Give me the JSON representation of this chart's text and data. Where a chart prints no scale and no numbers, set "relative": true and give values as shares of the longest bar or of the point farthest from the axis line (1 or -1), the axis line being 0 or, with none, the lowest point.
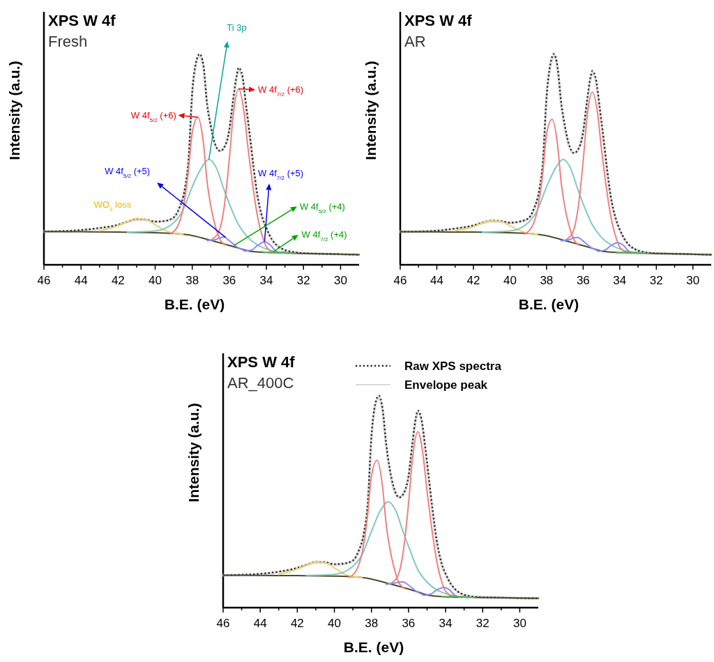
{
  "chart_data": [
    {
      "type": "line",
      "title": "XPS W 4f",
      "subtitle": "Fresh",
      "xlabel": "B.E. (eV)",
      "ylabel": "Intensity (a.u.)",
      "relative": true,
      "xlim": [
        46,
        29
      ],
      "xticks": [
        46,
        {
          "value": 45,
          "label": null
        },
        44,
        {
          "value": 43,
          "label": null
        },
        42,
        {
          "value": 41,
          "label": null
        },
        40,
        {
          "value": 39,
          "label": null
        },
        38,
        {
          "value": 37,
          "label": null
        },
        36,
        {
          "value": 35,
          "label": null
        },
        34,
        {
          "value": 33,
          "label": null
        },
        32,
        {
          "value": 31,
          "label": null
        },
        30
      ],
      "annotations": [
        {
          "text": "WO$_{3}$ loss",
          "x": 41,
          "y": 0.22
        },
        "Ti 3p",
        {
          "text": "W 4f$_{5/2}$ (+6)",
          "x": 37.7,
          "y": 0.7
        },
        {
          "text": "W 4f$_{7/2}$ (+6)",
          "x": 35.5,
          "y": 0.835
        },
        "W 4f$_{5/2}$ (+5)",
        {
          "text": "W 4f$_{7/2}$ (+5)",
          "x": 34.1,
          "y": 0.11
        },
        {
          "text": "W 4f$_{5/2}$ (+4)",
          "x": 35.74,
          "y": 0.092
        },
        {
          "text": "W 4f$_{7/2}$ (+4)",
          "x": 33.6,
          "y": 0.063
        }
      ],
      "series": [
        {
          "color": "#d9d9d9",
          "x": [
            46,
            45,
            44,
            43,
            42,
            41.5,
            41,
            40.5,
            40,
            39.5,
            39,
            38.7,
            38.4,
            38.2,
            38,
            37.8,
            37.6,
            37.4,
            37.2,
            37,
            36.8,
            36.5,
            36.2,
            36,
            35.8,
            35.6,
            35.5,
            35.3,
            35.1,
            34.9,
            34.7,
            34.5,
            34.2,
            34,
            33.7,
            33.4,
            33,
            32.5,
            32,
            31,
            30,
            29
          ],
          "values": [
            0.158,
            0.159,
            0.163,
            0.172,
            0.188,
            0.203,
            0.215,
            0.213,
            0.204,
            0.207,
            0.222,
            0.265,
            0.355,
            0.49,
            0.81,
            0.95,
            0.99,
            0.94,
            0.77,
            0.66,
            0.58,
            0.54,
            0.57,
            0.64,
            0.77,
            0.89,
            0.925,
            0.89,
            0.75,
            0.61,
            0.46,
            0.33,
            0.215,
            0.17,
            0.118,
            0.088,
            0.069,
            0.059,
            0.055,
            0.052,
            0.05,
            0.048
          ]
        },
        {
          "color": "#222222",
          "line_style": "dotted",
          "x": [
            46,
            45,
            44,
            43,
            42,
            41.5,
            41,
            40.5,
            40,
            39.5,
            39,
            38.7,
            38.4,
            38.2,
            38,
            37.8,
            37.6,
            37.4,
            37.2,
            37,
            36.8,
            36.5,
            36.2,
            36,
            35.8,
            35.6,
            35.5,
            35.3,
            35.1,
            34.9,
            34.7,
            34.5,
            34.2,
            34,
            33.7,
            33.4,
            33,
            32.5,
            32,
            31,
            30,
            29
          ],
          "values": [
            0.158,
            0.16,
            0.165,
            0.175,
            0.19,
            0.205,
            0.218,
            0.215,
            0.205,
            0.208,
            0.225,
            0.27,
            0.36,
            0.5,
            0.82,
            0.96,
            1.0,
            0.95,
            0.76,
            0.66,
            0.58,
            0.54,
            0.57,
            0.64,
            0.78,
            0.9,
            0.935,
            0.9,
            0.76,
            0.62,
            0.47,
            0.34,
            0.22,
            0.175,
            0.12,
            0.09,
            0.07,
            0.06,
            0.055,
            0.052,
            0.05,
            0.048
          ]
        },
        {
          "color": "#4b4b2a",
          "x": [
            46,
            44,
            42,
            40,
            39,
            38.5,
            38,
            37.5,
            37,
            36.5,
            36,
            35.5,
            35,
            34.5,
            34,
            33,
            32,
            31,
            30,
            29
          ],
          "values": [
            0.158,
            0.157,
            0.155,
            0.152,
            0.149,
            0.145,
            0.139,
            0.128,
            0.116,
            0.104,
            0.092,
            0.079,
            0.066,
            0.061,
            0.059,
            0.056,
            0.054,
            0.052,
            0.05,
            0.048
          ]
        },
        {
          "color": "#f0d070",
          "x": [
            43,
            42,
            41.5,
            41,
            40.5,
            40,
            39.5,
            39,
            38.5
          ],
          "values": [
            0.16,
            0.185,
            0.205,
            0.22,
            0.215,
            0.19,
            0.165,
            0.15,
            0.145
          ]
        },
        {
          "color": "#80c8c4",
          "x": [
            41.5,
            40,
            39,
            38.5,
            38,
            37.5,
            37.1,
            36.7,
            36.3,
            36,
            35.5,
            35,
            34.5,
            34,
            33.5,
            33
          ],
          "values": [
            0.155,
            0.16,
            0.2,
            0.26,
            0.37,
            0.46,
            0.5,
            0.46,
            0.36,
            0.29,
            0.19,
            0.13,
            0.095,
            0.075,
            0.062,
            0.058
          ]
        },
        {
          "color": "#f08080",
          "x": [
            39.2,
            38.8,
            38.5,
            38.2,
            38,
            37.7,
            37.4,
            37.2,
            37,
            36.8,
            36.5,
            36.2
          ],
          "values": [
            0.146,
            0.18,
            0.264,
            0.45,
            0.627,
            0.7,
            0.58,
            0.396,
            0.28,
            0.198,
            0.12,
            0.094
          ]
        },
        {
          "color": "#f08080",
          "x": [
            37,
            36.6,
            36.3,
            36,
            35.8,
            35.5,
            35.2,
            35,
            34.8,
            34.5,
            34.2,
            34,
            33.6
          ],
          "values": [
            0.118,
            0.15,
            0.26,
            0.5,
            0.7,
            0.835,
            0.72,
            0.56,
            0.42,
            0.24,
            0.13,
            0.085,
            0.06
          ]
        },
        {
          "color": "#8c8cf0",
          "x": [
            37.2,
            36.8,
            36.5,
            36.3,
            36,
            35.6,
            35.2
          ],
          "values": [
            0.115,
            0.118,
            0.128,
            0.132,
            0.115,
            0.085,
            0.068
          ]
        },
        {
          "color": "#8c8cf0",
          "x": [
            35.2,
            34.8,
            34.5,
            34.1,
            33.8,
            33.5,
            33.2
          ],
          "values": [
            0.065,
            0.07,
            0.09,
            0.109,
            0.095,
            0.065,
            0.055
          ]
        },
        {
          "color": "#60b060",
          "x": [
            34.2,
            33.8,
            33.5,
            33.2,
            32.8
          ],
          "values": [
            0.058,
            0.06,
            0.062,
            0.058,
            0.054
          ]
        },
        {
          "color": "#60b060",
          "x": [
            33.8,
            33.4,
            33.1,
            32.8,
            32.4
          ],
          "values": [
            0.057,
            0.059,
            0.06,
            0.056,
            0.053
          ]
        }
      ]
    },
    {
      "type": "line",
      "title": "XPS W 4f",
      "subtitle": "AR",
      "xlabel": "B.E. (eV)",
      "ylabel": "Intensity (a.u.)",
      "relative": true,
      "xlim": [
        46,
        29
      ],
      "xticks": [
        46,
        {
          "value": 45,
          "label": null
        },
        44,
        {
          "value": 43,
          "label": null
        },
        42,
        {
          "value": 41,
          "label": null
        },
        40,
        {
          "value": 39,
          "label": null
        },
        38,
        {
          "value": 37,
          "label": null
        },
        36,
        {
          "value": 35,
          "label": null
        },
        34,
        {
          "value": 33,
          "label": null
        },
        32,
        {
          "value": 31,
          "label": null
        },
        30
      ],
      "series": [
        {
          "color": "#d9d9d9",
          "x": [
            46,
            45,
            44,
            43,
            42,
            41.5,
            41,
            40.5,
            40,
            39.5,
            39,
            38.7,
            38.4,
            38.2,
            38,
            37.8,
            37.6,
            37.4,
            37.2,
            37,
            36.8,
            36.5,
            36.2,
            36,
            35.8,
            35.6,
            35.5,
            35.3,
            35.1,
            34.9,
            34.7,
            34.5,
            34.2,
            34,
            33.7,
            33.4,
            33,
            32.5,
            32,
            31,
            30,
            29
          ],
          "values": [
            0.157,
            0.158,
            0.161,
            0.17,
            0.185,
            0.198,
            0.207,
            0.205,
            0.198,
            0.203,
            0.218,
            0.26,
            0.35,
            0.48,
            0.79,
            0.94,
            0.99,
            0.93,
            0.76,
            0.65,
            0.57,
            0.53,
            0.56,
            0.63,
            0.76,
            0.88,
            0.91,
            0.87,
            0.74,
            0.6,
            0.45,
            0.32,
            0.21,
            0.165,
            0.115,
            0.086,
            0.067,
            0.058,
            0.054,
            0.052,
            0.05,
            0.048
          ]
        },
        {
          "color": "#222222",
          "line_style": "dotted",
          "x": [
            46,
            45,
            44,
            43,
            42,
            41.5,
            41,
            40.5,
            40,
            39.5,
            39,
            38.7,
            38.4,
            38.2,
            38,
            37.8,
            37.6,
            37.4,
            37.2,
            37,
            36.8,
            36.5,
            36.2,
            36,
            35.8,
            35.6,
            35.5,
            35.3,
            35.1,
            34.9,
            34.7,
            34.5,
            34.2,
            34,
            33.7,
            33.4,
            33,
            32.5,
            32,
            31,
            30,
            29
          ],
          "values": [
            0.157,
            0.158,
            0.162,
            0.172,
            0.187,
            0.2,
            0.21,
            0.208,
            0.2,
            0.205,
            0.22,
            0.265,
            0.355,
            0.49,
            0.8,
            0.95,
            1.0,
            0.94,
            0.77,
            0.66,
            0.58,
            0.53,
            0.56,
            0.63,
            0.77,
            0.89,
            0.92,
            0.88,
            0.75,
            0.61,
            0.46,
            0.33,
            0.215,
            0.168,
            0.117,
            0.087,
            0.068,
            0.058,
            0.054,
            0.052,
            0.05,
            0.048
          ]
        },
        {
          "color": "#4b4b2a",
          "x": [
            46,
            44,
            42,
            40,
            39,
            38.5,
            38,
            37.5,
            37,
            36.5,
            36,
            35.5,
            35,
            34.5,
            34,
            33,
            32,
            31,
            30,
            29
          ],
          "values": [
            0.157,
            0.156,
            0.155,
            0.152,
            0.149,
            0.145,
            0.138,
            0.127,
            0.115,
            0.103,
            0.091,
            0.078,
            0.065,
            0.06,
            0.058,
            0.055,
            0.054,
            0.052,
            0.05,
            0.048
          ]
        },
        {
          "color": "#f0d070",
          "x": [
            43,
            42,
            41.5,
            41,
            40.5,
            40,
            39.5,
            39,
            38.5
          ],
          "values": [
            0.16,
            0.18,
            0.198,
            0.21,
            0.205,
            0.185,
            0.163,
            0.15,
            0.145
          ]
        },
        {
          "color": "#80c8c4",
          "x": [
            41.5,
            40,
            39,
            38.5,
            38,
            37.5,
            37.1,
            36.7,
            36.3,
            36,
            35.5,
            35,
            34.5,
            34,
            33.5,
            33
          ],
          "values": [
            0.155,
            0.16,
            0.2,
            0.26,
            0.37,
            0.46,
            0.5,
            0.46,
            0.36,
            0.29,
            0.19,
            0.13,
            0.095,
            0.075,
            0.062,
            0.058
          ]
        },
        {
          "color": "#f08080",
          "x": [
            39.2,
            38.8,
            38.5,
            38.2,
            38,
            37.7,
            37.4,
            37.2,
            37,
            36.8,
            36.5,
            36.2
          ],
          "values": [
            0.146,
            0.18,
            0.26,
            0.44,
            0.62,
            0.69,
            0.57,
            0.39,
            0.275,
            0.195,
            0.118,
            0.092
          ]
        },
        {
          "color": "#f08080",
          "x": [
            37,
            36.6,
            36.3,
            36,
            35.8,
            35.5,
            35.2,
            35,
            34.8,
            34.5,
            34.2,
            34,
            33.6
          ],
          "values": [
            0.116,
            0.148,
            0.255,
            0.49,
            0.69,
            0.82,
            0.71,
            0.55,
            0.41,
            0.235,
            0.128,
            0.084,
            0.059
          ]
        },
        {
          "color": "#8c8cf0",
          "x": [
            37.2,
            36.8,
            36.5,
            36.3,
            36,
            35.6,
            35.2
          ],
          "values": [
            0.114,
            0.118,
            0.128,
            0.13,
            0.113,
            0.084,
            0.067
          ]
        },
        {
          "color": "#8c8cf0",
          "x": [
            35.2,
            34.8,
            34.5,
            34.1,
            33.8,
            33.5,
            33.2
          ],
          "values": [
            0.064,
            0.07,
            0.09,
            0.105,
            0.092,
            0.064,
            0.055
          ]
        },
        {
          "color": "#60b060",
          "x": [
            34.2,
            33.8,
            33.5,
            33.2,
            32.8
          ],
          "values": [
            0.057,
            0.059,
            0.061,
            0.057,
            0.054
          ]
        },
        {
          "color": "#60b060",
          "x": [
            33.8,
            33.4,
            33.1,
            32.8,
            32.4
          ],
          "values": [
            0.056,
            0.058,
            0.059,
            0.056,
            0.053
          ]
        }
      ]
    },
    {
      "type": "line",
      "title": "XPS W 4f",
      "subtitle": "AR_400C",
      "xlabel": "B.E. (eV)",
      "ylabel": "Intensity (a.u.)",
      "relative": true,
      "legend": "top right",
      "xlim": [
        46,
        29
      ],
      "xticks": [
        46,
        {
          "value": 45,
          "label": null
        },
        44,
        {
          "value": 43,
          "label": null
        },
        42,
        {
          "value": 41,
          "label": null
        },
        40,
        {
          "value": 39,
          "label": null
        },
        38,
        {
          "value": 37,
          "label": null
        },
        36,
        {
          "value": 35,
          "label": null
        },
        34,
        {
          "value": 33,
          "label": null
        },
        32,
        {
          "value": 31,
          "label": null
        },
        30
      ],
      "series": [
        {
          "name": "Envelope peak",
          "color": "#d9d9d9",
          "x": [
            46,
            45,
            44,
            43,
            42,
            41.5,
            41,
            40.5,
            40,
            39.5,
            39,
            38.7,
            38.4,
            38.2,
            38,
            37.8,
            37.6,
            37.4,
            37.2,
            37,
            36.8,
            36.5,
            36.2,
            36,
            35.8,
            35.6,
            35.5,
            35.3,
            35.1,
            34.9,
            34.7,
            34.5,
            34.2,
            34,
            33.7,
            33.4,
            33,
            32.5,
            32,
            31,
            30,
            29
          ],
          "values": [
            0.153,
            0.154,
            0.158,
            0.168,
            0.185,
            0.2,
            0.214,
            0.212,
            0.203,
            0.206,
            0.22,
            0.262,
            0.35,
            0.48,
            0.8,
            0.95,
            0.99,
            0.93,
            0.76,
            0.64,
            0.56,
            0.52,
            0.55,
            0.62,
            0.76,
            0.89,
            0.92,
            0.88,
            0.75,
            0.6,
            0.45,
            0.32,
            0.2,
            0.158,
            0.108,
            0.078,
            0.06,
            0.052,
            0.049,
            0.047,
            0.045,
            0.044
          ]
        },
        {
          "name": "Raw XPS spectra",
          "color": "#222222",
          "line_style": "dotted",
          "x": [
            46,
            45,
            44,
            43,
            42,
            41.5,
            41,
            40.5,
            40,
            39.5,
            39,
            38.7,
            38.4,
            38.2,
            38,
            37.8,
            37.6,
            37.4,
            37.2,
            37,
            36.8,
            36.5,
            36.2,
            36,
            35.8,
            35.6,
            35.5,
            35.3,
            35.1,
            34.9,
            34.7,
            34.5,
            34.2,
            34,
            33.7,
            33.4,
            33,
            32.5,
            32,
            31,
            30,
            29
          ],
          "values": [
            0.153,
            0.155,
            0.16,
            0.17,
            0.188,
            0.203,
            0.217,
            0.215,
            0.205,
            0.208,
            0.223,
            0.266,
            0.355,
            0.49,
            0.81,
            0.96,
            1.0,
            0.94,
            0.77,
            0.65,
            0.57,
            0.52,
            0.55,
            0.62,
            0.77,
            0.9,
            0.93,
            0.89,
            0.76,
            0.61,
            0.46,
            0.33,
            0.205,
            0.16,
            0.11,
            0.08,
            0.061,
            0.052,
            0.049,
            0.047,
            0.045,
            0.044
          ]
        },
        {
          "color": "#4b4b2a",
          "x": [
            46,
            44,
            42,
            40,
            39,
            38.5,
            38,
            37.5,
            37,
            36.5,
            36,
            35.5,
            35,
            34.5,
            34,
            33,
            32,
            31,
            30,
            29
          ],
          "values": [
            0.153,
            0.152,
            0.151,
            0.149,
            0.146,
            0.142,
            0.135,
            0.124,
            0.112,
            0.1,
            0.088,
            0.074,
            0.06,
            0.054,
            0.051,
            0.049,
            0.048,
            0.047,
            0.045,
            0.044
          ]
        },
        {
          "color": "#f0d070",
          "x": [
            43,
            42,
            41.5,
            41,
            40.5,
            40,
            39.5,
            39,
            38.5
          ],
          "values": [
            0.156,
            0.182,
            0.202,
            0.217,
            0.212,
            0.188,
            0.16,
            0.147,
            0.142
          ]
        },
        {
          "color": "#80c8c4",
          "x": [
            41.5,
            40,
            39,
            38.5,
            38,
            37.5,
            37.1,
            36.7,
            36.3,
            36,
            35.5,
            35,
            34.5,
            34,
            33.5,
            33
          ],
          "values": [
            0.152,
            0.157,
            0.195,
            0.25,
            0.36,
            0.46,
            0.5,
            0.46,
            0.36,
            0.29,
            0.18,
            0.12,
            0.085,
            0.066,
            0.055,
            0.05
          ]
        },
        {
          "color": "#f08080",
          "x": [
            39.2,
            38.8,
            38.5,
            38.2,
            38,
            37.7,
            37.4,
            37.2,
            37,
            36.8,
            36.5,
            36.2
          ],
          "values": [
            0.143,
            0.178,
            0.26,
            0.44,
            0.62,
            0.695,
            0.57,
            0.39,
            0.275,
            0.195,
            0.115,
            0.09
          ]
        },
        {
          "color": "#f08080",
          "x": [
            37,
            36.6,
            36.3,
            36,
            35.8,
            35.5,
            35.2,
            35,
            34.8,
            34.5,
            34.2,
            34,
            33.6
          ],
          "values": [
            0.113,
            0.145,
            0.255,
            0.49,
            0.69,
            0.83,
            0.71,
            0.55,
            0.41,
            0.23,
            0.12,
            0.078,
            0.052
          ]
        },
        {
          "color": "#8c8cf0",
          "x": [
            37.2,
            36.8,
            36.5,
            36.3,
            36,
            35.6,
            35.2
          ],
          "values": [
            0.11,
            0.115,
            0.12,
            0.122,
            0.106,
            0.078,
            0.06
          ]
        },
        {
          "color": "#8c8cf0",
          "x": [
            35.2,
            34.8,
            34.5,
            34.1,
            33.8,
            33.5,
            33.2
          ],
          "values": [
            0.058,
            0.064,
            0.082,
            0.095,
            0.085,
            0.058,
            0.048
          ]
        },
        {
          "color": "#60b060",
          "x": [
            34.2,
            33.8,
            33.5,
            33.2,
            32.8
          ],
          "values": [
            0.051,
            0.053,
            0.055,
            0.051,
            0.048
          ]
        },
        {
          "color": "#60b060",
          "x": [
            33.8,
            33.4,
            33.1,
            32.8,
            32.4
          ],
          "values": [
            0.05,
            0.052,
            0.053,
            0.05,
            0.048
          ]
        }
      ]
    }
  ]
}
